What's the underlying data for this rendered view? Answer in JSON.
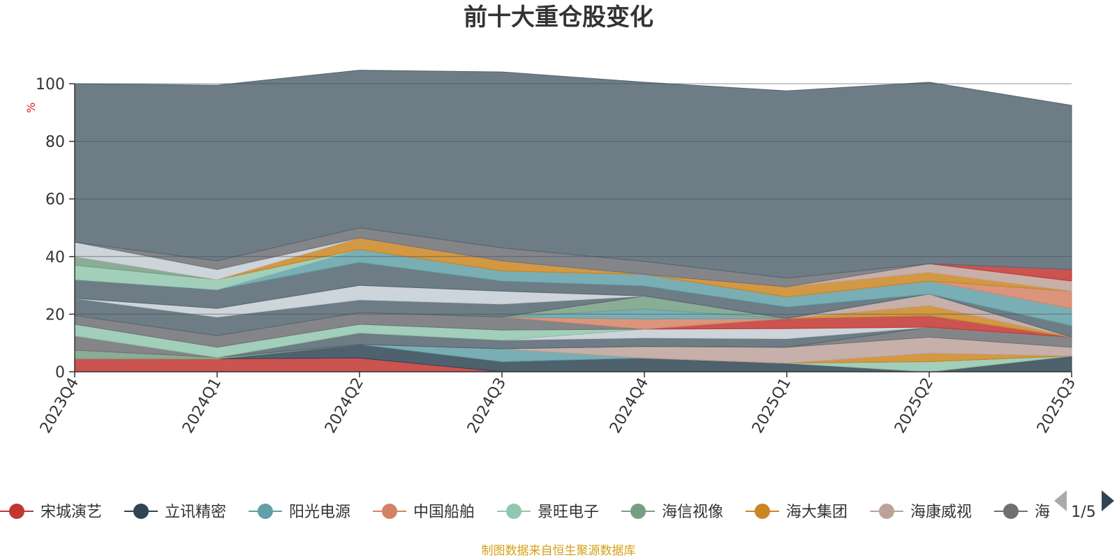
{
  "chart_data": {
    "type": "area",
    "stacked": true,
    "title": "前十大重仓股变化",
    "ylabel": "%",
    "ylim": [
      0,
      100
    ],
    "yticks": [
      0,
      20,
      40,
      60,
      80,
      100
    ],
    "grid": true,
    "categories": [
      "2023Q4",
      "2024Q1",
      "2024Q2",
      "2024Q3",
      "2024Q4",
      "2025Q1",
      "2025Q2",
      "2025Q3"
    ],
    "series": [
      {
        "name": "宋城演艺",
        "color": "#c23531",
        "values": [
          4.5,
          4.5,
          4.8,
          0,
          0,
          0,
          0,
          0
        ]
      },
      {
        "name": "立讯精密",
        "color": "#2f4554",
        "values": [
          0,
          0,
          4.7,
          3.5,
          4.8,
          3.0,
          0,
          5.5
        ]
      },
      {
        "name": "阳光电源",
        "color": "#61a0a8",
        "values": [
          0,
          0,
          0,
          4.5,
          0,
          0,
          0,
          0
        ]
      },
      {
        "name": "中国船舶",
        "color": "#d48265",
        "values": [
          0,
          0,
          0,
          0,
          0,
          0,
          0,
          0
        ]
      },
      {
        "name": "景旺电子",
        "color": "#91c7ae",
        "values": [
          0,
          0,
          0,
          0,
          0,
          0,
          3.5,
          0
        ]
      },
      {
        "name": "海信视像",
        "color": "#749f83",
        "values": [
          3.0,
          0.5,
          0,
          0,
          0,
          0,
          0,
          0
        ]
      },
      {
        "name": "海大集团",
        "color": "#ca8622",
        "values": [
          0,
          0,
          0,
          0,
          0,
          0,
          3.0,
          0
        ]
      },
      {
        "name": "海康威视",
        "color": "#bda29a",
        "values": [
          0,
          0,
          0,
          0,
          4.0,
          5.5,
          5.5,
          3.0
        ]
      },
      {
        "name": "",
        "color": "#6e7074",
        "values": [
          5.0,
          0,
          0,
          0,
          0,
          0,
          3.5,
          3.5
        ]
      },
      {
        "name": "",
        "color": "#546570",
        "values": [
          0,
          0,
          4.0,
          3.0,
          3.0,
          3.0,
          0,
          0
        ]
      },
      {
        "name": "",
        "color": "#c4ccd3",
        "values": [
          0,
          0,
          0,
          0,
          3.0,
          3.5,
          0,
          0
        ]
      },
      {
        "name": "",
        "color": "#c23531",
        "values": [
          0,
          0,
          0,
          0,
          0,
          3.5,
          4.0,
          0
        ]
      },
      {
        "name": "",
        "color": "#91c7ae",
        "values": [
          4.0,
          3.5,
          3.0,
          3.5,
          0,
          0,
          0,
          0
        ]
      },
      {
        "name": "",
        "color": "#6e7074",
        "values": [
          3.0,
          4.0,
          4.0,
          4.5,
          0,
          0,
          0,
          0
        ]
      },
      {
        "name": "",
        "color": "#d48265",
        "values": [
          0,
          0,
          0,
          0,
          3.5,
          0,
          0,
          0
        ]
      },
      {
        "name": "",
        "color": "#61a0a8",
        "values": [
          0,
          0,
          0,
          0,
          3.5,
          0,
          0,
          0
        ]
      },
      {
        "name": "",
        "color": "#749f83",
        "values": [
          0,
          0,
          0,
          0,
          4.5,
          0,
          0,
          0
        ]
      },
      {
        "name": "",
        "color": "#ca8622",
        "values": [
          0,
          0,
          0,
          0,
          0,
          0,
          3.5,
          0
        ]
      },
      {
        "name": "",
        "color": "#bda29a",
        "values": [
          0,
          0,
          0,
          0,
          0,
          0,
          4.0,
          0
        ]
      },
      {
        "name": "",
        "color": "#546570",
        "values": [
          6.0,
          6.5,
          4.5,
          4.5,
          0,
          0,
          0,
          4.0
        ]
      },
      {
        "name": "",
        "color": "#c4ccd3",
        "values": [
          0,
          3.0,
          5.0,
          4.5,
          0,
          0,
          0,
          0
        ]
      },
      {
        "name": "",
        "color": "#546570",
        "values": [
          6.5,
          6.5,
          8.0,
          3.5,
          3.5,
          4.0,
          0,
          0
        ]
      },
      {
        "name": "",
        "color": "#61a0a8",
        "values": [
          0,
          0,
          4.5,
          3.5,
          4.0,
          3.5,
          4.5,
          6.0
        ]
      },
      {
        "name": "",
        "color": "#91c7ae",
        "values": [
          5.0,
          3.5,
          0,
          0,
          0,
          0,
          0,
          0
        ]
      },
      {
        "name": "",
        "color": "#d48265",
        "values": [
          0,
          0,
          0,
          0,
          0,
          0,
          0,
          6.0
        ]
      },
      {
        "name": "",
        "color": "#749f83",
        "values": [
          3.0,
          0,
          0,
          0,
          0,
          0,
          0,
          0
        ]
      },
      {
        "name": "",
        "color": "#ca8622",
        "values": [
          0,
          0,
          4.0,
          3.5,
          0,
          3.5,
          3.0,
          0
        ]
      },
      {
        "name": "",
        "color": "#bda29a",
        "values": [
          0,
          0,
          0,
          0,
          0,
          0,
          3.0,
          3.5
        ]
      },
      {
        "name": "",
        "color": "#c23531",
        "values": [
          0,
          0,
          0,
          0,
          0,
          0,
          0,
          4.0
        ]
      },
      {
        "name": "",
        "color": "#c4ccd3",
        "values": [
          5.0,
          3.5,
          0,
          0,
          0,
          0,
          0,
          0
        ]
      },
      {
        "name": "",
        "color": "#6e7074",
        "values": [
          0,
          3.0,
          3.5,
          4.5,
          4.5,
          3.0,
          0,
          0
        ]
      },
      {
        "name": "",
        "color": "#546570",
        "values": [
          55.0,
          61.0,
          54.7,
          61.1,
          62.2,
          65.0,
          63.0,
          57.0
        ]
      }
    ]
  },
  "legend": {
    "items": [
      {
        "label": "宋城演艺",
        "color": "#c23531"
      },
      {
        "label": "立讯精密",
        "color": "#2f4554"
      },
      {
        "label": "阳光电源",
        "color": "#61a0a8"
      },
      {
        "label": "中国船舶",
        "color": "#d48265"
      },
      {
        "label": "景旺电子",
        "color": "#91c7ae"
      },
      {
        "label": "海信视像",
        "color": "#749f83"
      },
      {
        "label": "海大集团",
        "color": "#ca8622"
      },
      {
        "label": "海康威视",
        "color": "#bda29a"
      },
      {
        "label": "海",
        "color": "#6e7074"
      }
    ],
    "page_indicator": "1/5",
    "prev_icon": "triangle-left-icon",
    "next_icon": "triangle-right-icon"
  },
  "source_note": "制图数据来自恒生聚源数据库"
}
